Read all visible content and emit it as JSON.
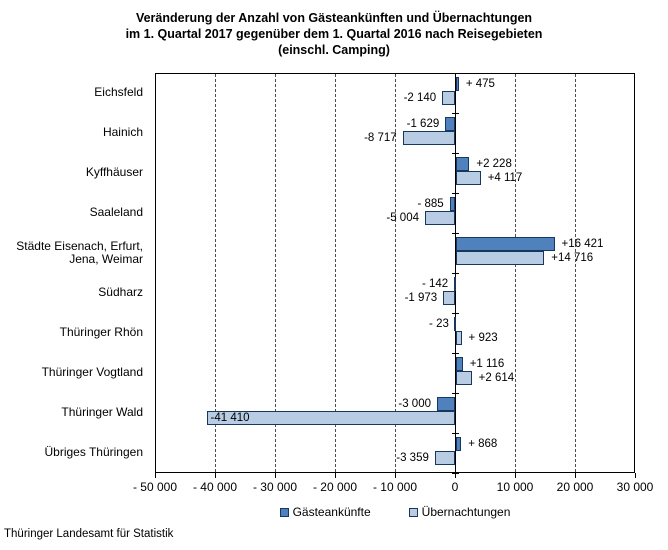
{
  "title_lines": [
    "Veränderung der Anzahl von Gästeankünften und Übernachtungen",
    "im 1. Quartal 2017 gegenüber dem 1. Quartal 2016 nach Reisegebieten",
    "(einschl. Camping)"
  ],
  "footer": "Thüringer Landesamt für Statistik",
  "colors": {
    "series_dark": "#4F81BD",
    "series_light": "#B8CCE4",
    "bar_border": "#17375E",
    "axis": "#000000",
    "gridline": "#4D4D4D"
  },
  "legend": {
    "items": [
      {
        "label": "Gästeankünfte",
        "color": "#4F81BD"
      },
      {
        "label": "Übernachtungen",
        "color": "#B8CCE4"
      }
    ]
  },
  "chart_data": {
    "type": "bar",
    "orientation": "horizontal",
    "title": "Veränderung der Anzahl von Gästeankünften und Übernachtungen im 1. Quartal 2017 gegenüber dem 1. Quartal 2016 nach Reisegebieten (einschl. Camping)",
    "categories": [
      "Eichsfeld",
      "Hainich",
      "Kyffhäuser",
      "Saaleland",
      "Städte Eisenach, Erfurt,\nJena, Weimar",
      "Südharz",
      "Thüringer Rhön",
      "Thüringer Vogtland",
      "Thüringer Wald",
      "Übriges Thüringen"
    ],
    "series": [
      {
        "name": "Gästeankünfte",
        "values": [
          475,
          -1629,
          2228,
          -885,
          16421,
          -142,
          -23,
          1116,
          -3000,
          868
        ],
        "labels": [
          "+ 475",
          "-1 629",
          "+2 228",
          "- 885",
          "+16 421",
          "- 142",
          "- 23",
          "+1 116",
          "-3 000",
          "+ 868"
        ]
      },
      {
        "name": "Übernachtungen",
        "values": [
          -2140,
          -8717,
          4117,
          -5004,
          14716,
          -1973,
          923,
          2614,
          -41410,
          -3359
        ],
        "labels": [
          "-2 140",
          "-8 717",
          "+4 117",
          "-5 004",
          "+14 716",
          "-1 973",
          "+ 923",
          "+2 614",
          "-41 410",
          "-3 359"
        ]
      }
    ],
    "xlim": [
      -50000,
      30000
    ],
    "xticks": [
      -50000,
      -40000,
      -30000,
      -20000,
      -10000,
      0,
      10000,
      20000,
      30000
    ],
    "xtick_labels": [
      "- 50 000",
      "- 40 000",
      "- 30 000",
      "- 20 000",
      "- 10 000",
      "0",
      "10 000",
      "20 000",
      "30 000"
    ],
    "grid": "vertical-dashed",
    "legend_position": "bottom"
  }
}
